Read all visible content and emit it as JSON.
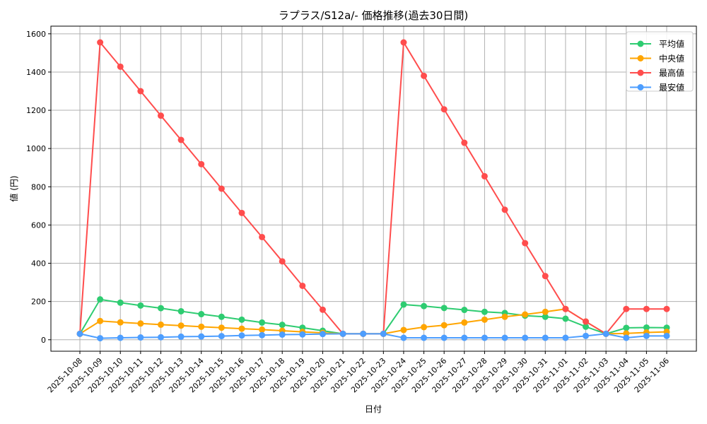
{
  "chart_data": {
    "type": "line",
    "title": "ラプラス/S12a/- 価格推移(過去30日間)",
    "xlabel": "日付",
    "ylabel": "値 (円)",
    "ylim": [
      -60,
      1640
    ],
    "yticks": [
      0,
      200,
      400,
      600,
      800,
      1000,
      1200,
      1400,
      1600
    ],
    "grid": true,
    "legend_position": "top-right",
    "categories": [
      "2025-10-08",
      "2025-10-09",
      "2025-10-10",
      "2025-10-11",
      "2025-10-12",
      "2025-10-13",
      "2025-10-14",
      "2025-10-15",
      "2025-10-16",
      "2025-10-17",
      "2025-10-18",
      "2025-10-19",
      "2025-10-20",
      "2025-10-21",
      "2025-10-22",
      "2025-10-23",
      "2025-10-24",
      "2025-10-25",
      "2025-10-26",
      "2025-10-27",
      "2025-10-28",
      "2025-10-29",
      "2025-10-30",
      "2025-10-31",
      "2025-11-01",
      "2025-11-02",
      "2025-11-03",
      "2025-11-04",
      "2025-11-05",
      "2025-11-06"
    ],
    "series": [
      {
        "name": "平均値",
        "color": "#2ecc71",
        "values": [
          31,
          211,
          194,
          179,
          165,
          149,
          134,
          120,
          105,
          90,
          78,
          63,
          47,
          31,
          31,
          31,
          184,
          176,
          166,
          156,
          146,
          140,
          126,
          120,
          110,
          68,
          31,
          62,
          64,
          63
        ]
      },
      {
        "name": "中央値",
        "color": "#ffa500",
        "values": [
          31,
          98,
          91,
          85,
          79,
          74,
          68,
          63,
          58,
          53,
          47,
          41,
          36,
          31,
          31,
          31,
          51,
          66,
          76,
          90,
          105,
          120,
          132,
          146,
          161,
          95,
          31,
          33,
          38,
          41
        ]
      },
      {
        "name": "最高値",
        "color": "#ff4d4d",
        "values": [
          31,
          1555,
          1428,
          1300,
          1172,
          1045,
          918,
          790,
          663,
          537,
          410,
          282,
          157,
          31,
          31,
          31,
          1555,
          1380,
          1205,
          1030,
          855,
          680,
          505,
          333,
          161,
          95,
          31,
          161,
          161,
          161
        ]
      },
      {
        "name": "最安値",
        "color": "#4d9eff",
        "values": [
          31,
          8,
          10,
          12,
          13,
          16,
          17,
          19,
          22,
          24,
          27,
          28,
          30,
          31,
          31,
          31,
          10,
          10,
          10,
          10,
          10,
          10,
          10,
          10,
          10,
          20,
          31,
          10,
          20,
          20
        ]
      }
    ]
  }
}
